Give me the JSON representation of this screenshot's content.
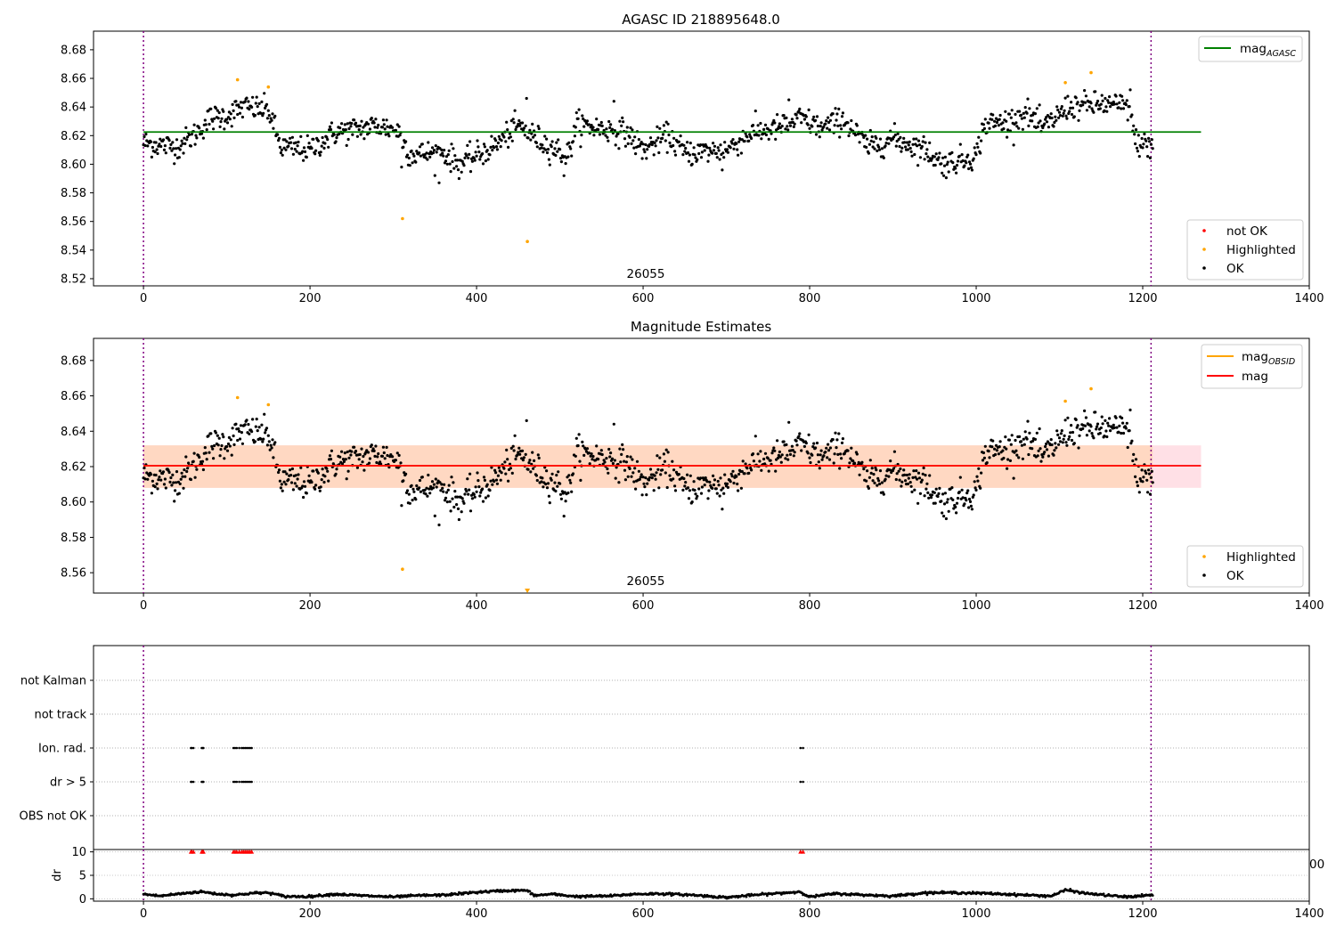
{
  "colors": {
    "ok": "#000000",
    "highlighted": "#ffa500",
    "not_ok": "#ff0000",
    "mag_agasc_line": "#008000",
    "mag_obsid_line": "#ffa500",
    "mag_line": "#ff0000",
    "obs_boundary": "#800080",
    "band_obsid": "#ffd8c2",
    "band_mag": "#ffe0e6"
  },
  "chart_data": [
    {
      "type": "scatter",
      "title": "AGASC ID 218895648.0",
      "xlim": [
        -60,
        1400
      ],
      "ylim": [
        8.515,
        8.693
      ],
      "x_ticks": [
        "0",
        "200",
        "400",
        "600",
        "800",
        "1000",
        "1200",
        "1400"
      ],
      "x_tick_values": [
        0,
        200,
        400,
        600,
        800,
        1000,
        1200,
        1400
      ],
      "y_ticks": [
        "8.52",
        "8.54",
        "8.56",
        "8.58",
        "8.60",
        "8.62",
        "8.64",
        "8.66",
        "8.68"
      ],
      "y_tick_values": [
        8.52,
        8.54,
        8.56,
        8.58,
        8.6,
        8.62,
        8.64,
        8.66,
        8.68
      ],
      "obs_boundaries": [
        0,
        1210
      ],
      "obsid_label": {
        "text": "26055",
        "x": 605
      },
      "mag_agasc": 8.6225,
      "line_x_range": [
        0,
        1270
      ],
      "legend_lines": [
        {
          "name": "mag",
          "sub": "AGASC",
          "color": "#008000"
        }
      ],
      "legend_points": [
        {
          "name": "not OK",
          "color": "#ff0000"
        },
        {
          "name": "Highlighted",
          "color": "#ffa500"
        },
        {
          "name": "OK",
          "color": "#000000"
        }
      ],
      "ok_series": {
        "x_range": [
          0,
          1212
        ],
        "anchors": [
          [
            0,
            8.615
          ],
          [
            40,
            8.612
          ],
          [
            60,
            8.62
          ],
          [
            80,
            8.632
          ],
          [
            100,
            8.634
          ],
          [
            120,
            8.64
          ],
          [
            150,
            8.638
          ],
          [
            165,
            8.612
          ],
          [
            200,
            8.61
          ],
          [
            230,
            8.622
          ],
          [
            280,
            8.627
          ],
          [
            305,
            8.624
          ],
          [
            320,
            8.607
          ],
          [
            360,
            8.608
          ],
          [
            380,
            8.6
          ],
          [
            420,
            8.612
          ],
          [
            450,
            8.627
          ],
          [
            480,
            8.615
          ],
          [
            510,
            8.606
          ],
          [
            520,
            8.628
          ],
          [
            560,
            8.624
          ],
          [
            580,
            8.622
          ],
          [
            600,
            8.61
          ],
          [
            630,
            8.62
          ],
          [
            650,
            8.608
          ],
          [
            700,
            8.61
          ],
          [
            730,
            8.622
          ],
          [
            760,
            8.625
          ],
          [
            790,
            8.632
          ],
          [
            815,
            8.625
          ],
          [
            840,
            8.632
          ],
          [
            870,
            8.612
          ],
          [
            900,
            8.618
          ],
          [
            940,
            8.61
          ],
          [
            960,
            8.6
          ],
          [
            1000,
            8.606
          ],
          [
            1010,
            8.628
          ],
          [
            1040,
            8.63
          ],
          [
            1060,
            8.636
          ],
          [
            1080,
            8.625
          ],
          [
            1110,
            8.64
          ],
          [
            1150,
            8.642
          ],
          [
            1185,
            8.64
          ],
          [
            1190,
            8.616
          ],
          [
            1212,
            8.612
          ]
        ],
        "noise": 0.0045,
        "dips": [
          [
            310,
            8.598
          ],
          [
            355,
            8.587
          ],
          [
            505,
            8.592
          ],
          [
            655,
            8.602
          ],
          [
            695,
            8.596
          ],
          [
            985,
            8.598
          ]
        ],
        "peaks": [
          [
            460,
            8.646
          ],
          [
            565,
            8.644
          ],
          [
            775,
            8.645
          ],
          [
            1185,
            8.652
          ]
        ]
      },
      "highlighted_points": [
        [
          113,
          8.659
        ],
        [
          150,
          8.654
        ],
        [
          311,
          8.562
        ],
        [
          461,
          8.546
        ],
        [
          1107,
          8.657
        ],
        [
          1138,
          8.664
        ]
      ]
    },
    {
      "type": "scatter",
      "title": "Magnitude Estimates",
      "xlim": [
        -60,
        1400
      ],
      "ylim": [
        8.5485,
        8.6925
      ],
      "x_ticks": [
        "0",
        "200",
        "400",
        "600",
        "800",
        "1000",
        "1200",
        "1400"
      ],
      "x_tick_values": [
        0,
        200,
        400,
        600,
        800,
        1000,
        1200,
        1400
      ],
      "y_ticks": [
        "8.56",
        "8.58",
        "8.60",
        "8.62",
        "8.64",
        "8.66",
        "8.68"
      ],
      "y_tick_values": [
        8.56,
        8.58,
        8.6,
        8.62,
        8.64,
        8.66,
        8.68
      ],
      "obs_boundaries": [
        0,
        1210
      ],
      "obsid_label": {
        "text": "26055",
        "x": 605
      },
      "mag_obsid": {
        "value": 8.6205,
        "band": [
          8.608,
          8.632
        ],
        "x_range": [
          0,
          1212
        ]
      },
      "mag": {
        "value": 8.6205,
        "band": [
          8.608,
          8.632
        ],
        "x_range": [
          0,
          1270
        ]
      },
      "legend_lines": [
        {
          "name": "mag",
          "sub": "OBSID",
          "color": "#ffa500"
        },
        {
          "name": "mag",
          "sub": "",
          "color": "#ff0000"
        }
      ],
      "legend_points": [
        {
          "name": "Highlighted",
          "color": "#ffa500"
        },
        {
          "name": "OK",
          "color": "#000000"
        }
      ],
      "highlighted_points": [
        [
          113,
          8.659
        ],
        [
          150,
          8.655
        ],
        [
          311,
          8.562
        ],
        [
          1107,
          8.657
        ],
        [
          1138,
          8.664
        ]
      ],
      "off_scale_marker": {
        "x": 461,
        "y": 8.5495
      }
    },
    {
      "type": "scatter",
      "title": "",
      "xlim": [
        -60,
        1400
      ],
      "categories": [
        "not Kalman",
        "not track",
        "Ion. rad.",
        "dr > 5",
        "OBS not OK"
      ],
      "obs_boundaries": [
        0,
        1210
      ],
      "flag_points": {
        "Ion. rad.": [
          57,
          58,
          60,
          70,
          71,
          72,
          108,
          110,
          112,
          115,
          118,
          120,
          122,
          124,
          126,
          128,
          130,
          789,
          792
        ],
        "dr > 5": [
          57,
          58,
          60,
          70,
          71,
          72,
          108,
          110,
          112,
          115,
          118,
          120,
          122,
          124,
          126,
          128,
          130,
          789,
          792
        ],
        "not Kalman": [],
        "not track": [],
        "OBS not OK": []
      }
    },
    {
      "type": "scatter",
      "title": "",
      "ylabel": "dr",
      "xlim": [
        -60,
        1400
      ],
      "ylim": [
        -0.5,
        10.5
      ],
      "x_ticks": [
        "0",
        "200",
        "400",
        "600",
        "800",
        "1000",
        "1200",
        "1400"
      ],
      "x_tick_values": [
        0,
        200,
        400,
        600,
        800,
        1000,
        1200,
        1400
      ],
      "y_ticks": [
        "0",
        "5",
        "10"
      ],
      "y_tick_values": [
        0,
        5,
        10
      ],
      "obs_boundaries": [
        0,
        1210
      ],
      "clipped_label": "00",
      "dr_series": {
        "x_range": [
          0,
          1212
        ],
        "anchors": [
          [
            0,
            1.0
          ],
          [
            20,
            0.6
          ],
          [
            40,
            1.0
          ],
          [
            55,
            1.3
          ],
          [
            70,
            1.5
          ],
          [
            90,
            1.0
          ],
          [
            110,
            0.8
          ],
          [
            130,
            1.2
          ],
          [
            150,
            1.3
          ],
          [
            170,
            0.5
          ],
          [
            200,
            0.5
          ],
          [
            230,
            1.0
          ],
          [
            260,
            0.7
          ],
          [
            300,
            0.4
          ],
          [
            330,
            0.7
          ],
          [
            360,
            0.8
          ],
          [
            400,
            1.4
          ],
          [
            430,
            1.7
          ],
          [
            460,
            1.8
          ],
          [
            470,
            0.7
          ],
          [
            490,
            1.0
          ],
          [
            520,
            0.5
          ],
          [
            560,
            0.6
          ],
          [
            590,
            1.0
          ],
          [
            620,
            1.1
          ],
          [
            660,
            0.8
          ],
          [
            700,
            0.3
          ],
          [
            740,
            0.9
          ],
          [
            789,
            1.5
          ],
          [
            800,
            0.4
          ],
          [
            830,
            1.1
          ],
          [
            870,
            0.8
          ],
          [
            900,
            0.6
          ],
          [
            940,
            1.3
          ],
          [
            980,
            1.3
          ],
          [
            1020,
            1.1
          ],
          [
            1060,
            0.8
          ],
          [
            1090,
            0.6
          ],
          [
            1108,
            1.9
          ],
          [
            1130,
            1.2
          ],
          [
            1160,
            0.7
          ],
          [
            1180,
            0.4
          ],
          [
            1212,
            0.8
          ]
        ],
        "noise": 0.12
      },
      "clipped_markers": [
        57,
        58,
        60,
        70,
        71,
        72,
        108,
        110,
        112,
        115,
        118,
        120,
        122,
        124,
        126,
        128,
        130,
        789,
        792
      ],
      "clipped_value": 10
    }
  ]
}
